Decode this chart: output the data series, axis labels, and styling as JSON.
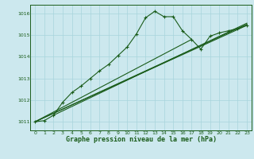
{
  "title": "Graphe pression niveau de la mer (hPa)",
  "bg_color": "#cce8ee",
  "grid_color": "#a8d4dc",
  "line_color": "#1a5c1a",
  "xlim": [
    -0.5,
    23.5
  ],
  "ylim": [
    1010.6,
    1016.4
  ],
  "yticks": [
    1011,
    1012,
    1013,
    1014,
    1015,
    1016
  ],
  "xticks": [
    0,
    1,
    2,
    3,
    4,
    5,
    6,
    7,
    8,
    9,
    10,
    11,
    12,
    13,
    14,
    15,
    16,
    17,
    18,
    19,
    20,
    21,
    22,
    23
  ],
  "series_main": {
    "x": [
      0,
      1,
      2,
      3,
      4,
      5,
      6,
      7,
      8,
      9,
      10,
      11,
      12,
      13,
      14,
      15,
      16,
      17,
      18,
      19,
      20,
      21,
      22,
      23
    ],
    "y": [
      1011.0,
      1011.05,
      1011.3,
      1011.9,
      1012.35,
      1012.65,
      1013.0,
      1013.35,
      1013.65,
      1014.05,
      1014.45,
      1015.05,
      1015.8,
      1016.1,
      1015.85,
      1015.85,
      1015.2,
      1014.8,
      1014.35,
      1014.95,
      1015.1,
      1015.2,
      1015.3,
      1015.45
    ]
  },
  "series_line1": {
    "x": [
      0,
      17
    ],
    "y": [
      1011.0,
      1014.8
    ]
  },
  "series_line2": {
    "x": [
      0,
      23
    ],
    "y": [
      1011.0,
      1015.45
    ]
  },
  "series_line3": {
    "x": [
      0,
      23
    ],
    "y": [
      1011.0,
      1015.5
    ]
  },
  "series_line4": {
    "x": [
      2,
      23
    ],
    "y": [
      1011.3,
      1015.55
    ]
  }
}
